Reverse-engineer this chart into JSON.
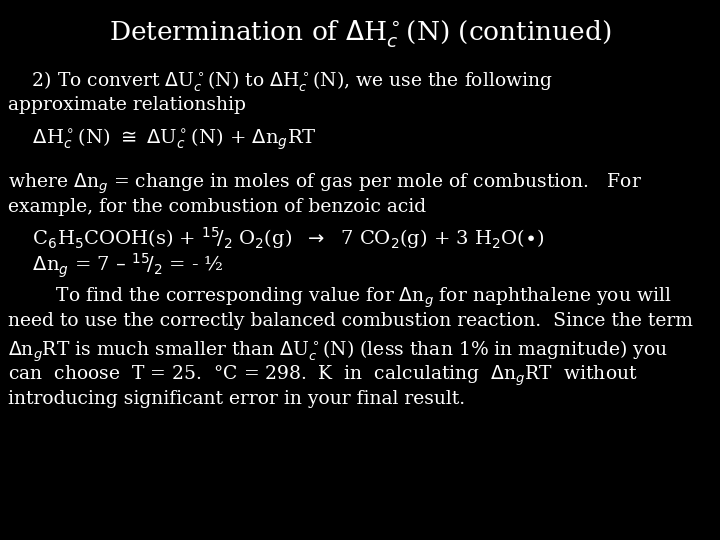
{
  "background_color": "#000000",
  "text_color": "#ffffff",
  "title": "Determination of $\\Delta$H$^\\circ_c$(N) (continued)",
  "line1": "    2) To convert $\\Delta$U$^\\circ_c$(N) to $\\Delta$H$^\\circ_c$(N), we use the following",
  "line2": "approximate relationship",
  "equation1": "    $\\Delta$H$^\\circ_c$(N) $\\cong$ $\\Delta$U$^\\circ_c$(N) + $\\Delta$n$_g$RT",
  "line3": "where $\\Delta$n$_g$ = change in moles of gas per mole of combustion.   For",
  "line4": "example, for the combustion of benzoic acid",
  "equation2": "    C$_6$H$_5$COOH(s) + $^{15}\\!/_2$ O$_2$(g)  $\\rightarrow$  7 CO$_2$(g) + 3 H$_2$O($\\bullet$)",
  "equation3": "    $\\Delta$n$_g$ = 7 – $^{15}\\!/_2$ = - ½",
  "para1a": "        To find the corresponding value for $\\Delta$n$_g$ for naphthalene you will",
  "para1b": "need to use the correctly balanced combustion reaction.  Since the term",
  "para1c": "$\\Delta$n$_g$RT is much smaller than $\\Delta$U$^\\circ_c$(N) (less than 1% in magnitude) you",
  "para1d": "can  choose  T = 25.  °C = 298.  K  in  calculating  $\\Delta$n$_g$RT  without",
  "para1e": "introducing significant error in your final result.",
  "title_fontsize": 19,
  "body_fontsize": 13.5,
  "equation_fontsize": 14
}
